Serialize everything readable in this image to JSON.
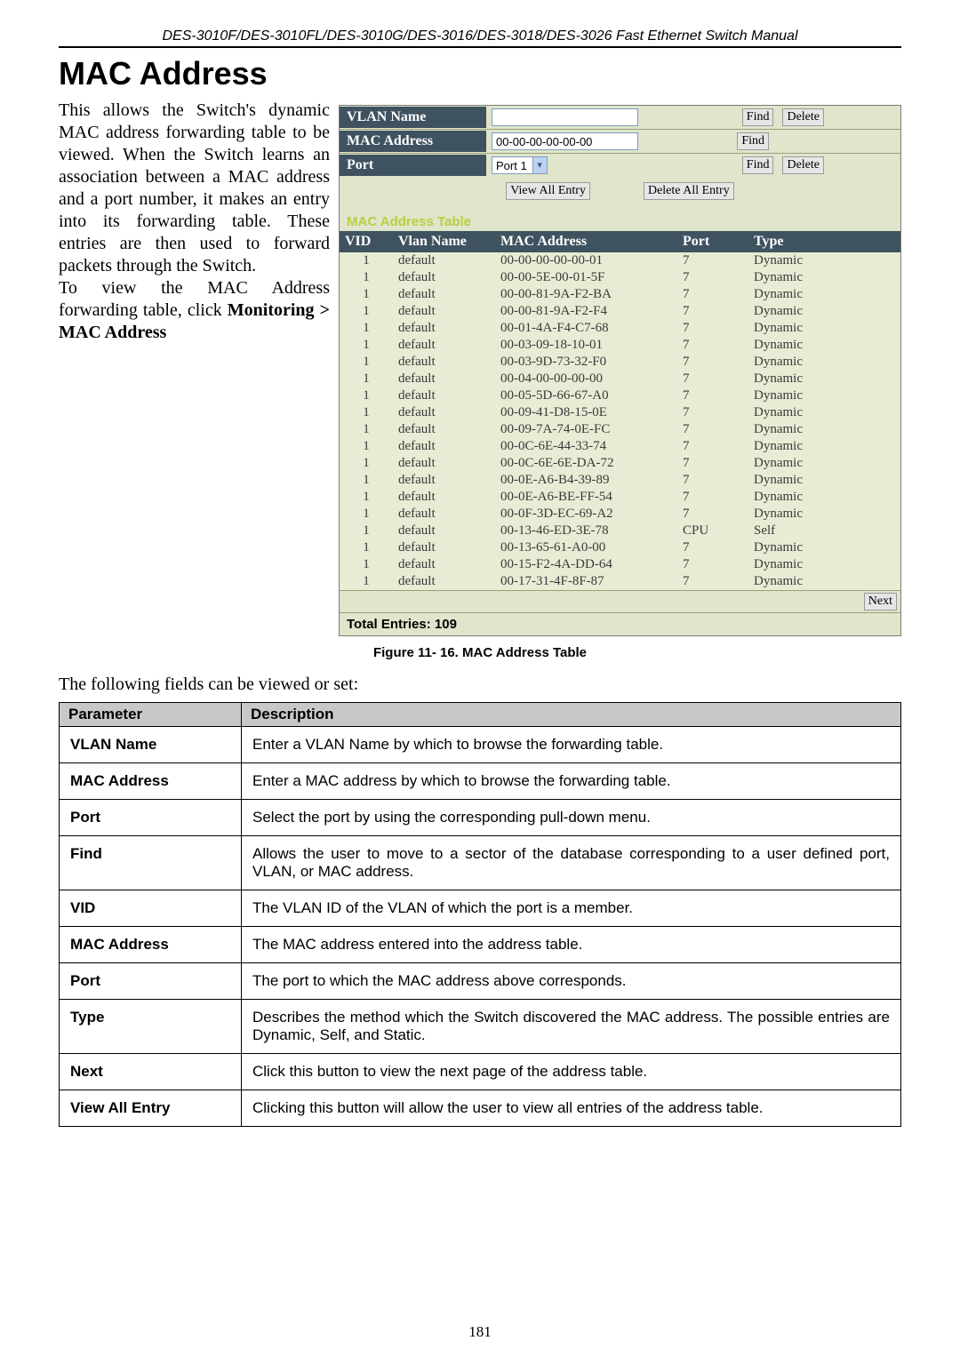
{
  "header": "DES-3010F/DES-3010FL/DES-3010G/DES-3016/DES-3018/DES-3026 Fast Ethernet Switch Manual",
  "title": "MAC Address",
  "body_p1": "This allows the Switch's dynamic MAC address forwarding table to be viewed. When the Switch learns an association between a MAC address and a port number, it makes an entry into its forwarding table. These entries are then used to forward packets through the Switch.",
  "body_p2a": "To view the MAC Address forwarding table, click ",
  "body_p2b": "Monitoring > MAC Address",
  "filters": {
    "vlan_label": "VLAN Name",
    "mac_label": "MAC Address",
    "mac_value": "00-00-00-00-00-00",
    "port_label": "Port",
    "port_value": "Port 1",
    "find": "Find",
    "delete": "Delete",
    "view_all": "View All Entry",
    "delete_all": "Delete All Entry"
  },
  "table_title": "MAC Address Table",
  "columns": {
    "vid": "VID",
    "vlan": "Vlan Name",
    "mac": "MAC Address",
    "port": "Port",
    "type": "Type"
  },
  "rows": [
    {
      "vid": "1",
      "vlan": "default",
      "mac": "00-00-00-00-00-01",
      "port": "7",
      "type": "Dynamic"
    },
    {
      "vid": "1",
      "vlan": "default",
      "mac": "00-00-5E-00-01-5F",
      "port": "7",
      "type": "Dynamic"
    },
    {
      "vid": "1",
      "vlan": "default",
      "mac": "00-00-81-9A-F2-BA",
      "port": "7",
      "type": "Dynamic"
    },
    {
      "vid": "1",
      "vlan": "default",
      "mac": "00-00-81-9A-F2-F4",
      "port": "7",
      "type": "Dynamic"
    },
    {
      "vid": "1",
      "vlan": "default",
      "mac": "00-01-4A-F4-C7-68",
      "port": "7",
      "type": "Dynamic"
    },
    {
      "vid": "1",
      "vlan": "default",
      "mac": "00-03-09-18-10-01",
      "port": "7",
      "type": "Dynamic"
    },
    {
      "vid": "1",
      "vlan": "default",
      "mac": "00-03-9D-73-32-F0",
      "port": "7",
      "type": "Dynamic"
    },
    {
      "vid": "1",
      "vlan": "default",
      "mac": "00-04-00-00-00-00",
      "port": "7",
      "type": "Dynamic"
    },
    {
      "vid": "1",
      "vlan": "default",
      "mac": "00-05-5D-66-67-A0",
      "port": "7",
      "type": "Dynamic"
    },
    {
      "vid": "1",
      "vlan": "default",
      "mac": "00-09-41-D8-15-0E",
      "port": "7",
      "type": "Dynamic"
    },
    {
      "vid": "1",
      "vlan": "default",
      "mac": "00-09-7A-74-0E-FC",
      "port": "7",
      "type": "Dynamic"
    },
    {
      "vid": "1",
      "vlan": "default",
      "mac": "00-0C-6E-44-33-74",
      "port": "7",
      "type": "Dynamic"
    },
    {
      "vid": "1",
      "vlan": "default",
      "mac": "00-0C-6E-6E-DA-72",
      "port": "7",
      "type": "Dynamic"
    },
    {
      "vid": "1",
      "vlan": "default",
      "mac": "00-0E-A6-B4-39-89",
      "port": "7",
      "type": "Dynamic"
    },
    {
      "vid": "1",
      "vlan": "default",
      "mac": "00-0E-A6-BE-FF-54",
      "port": "7",
      "type": "Dynamic"
    },
    {
      "vid": "1",
      "vlan": "default",
      "mac": "00-0F-3D-EC-69-A2",
      "port": "7",
      "type": "Dynamic"
    },
    {
      "vid": "1",
      "vlan": "default",
      "mac": "00-13-46-ED-3E-78",
      "port": "CPU",
      "type": "Self"
    },
    {
      "vid": "1",
      "vlan": "default",
      "mac": "00-13-65-61-A0-00",
      "port": "7",
      "type": "Dynamic"
    },
    {
      "vid": "1",
      "vlan": "default",
      "mac": "00-15-F2-4A-DD-64",
      "port": "7",
      "type": "Dynamic"
    },
    {
      "vid": "1",
      "vlan": "default",
      "mac": "00-17-31-4F-8F-87",
      "port": "7",
      "type": "Dynamic"
    }
  ],
  "next_btn": "Next",
  "total_entries": "Total Entries: 109",
  "figure_caption": "Figure 11- 16. MAC Address Table",
  "lead": "The following fields can be viewed or set:",
  "param_headers": {
    "p": "Parameter",
    "d": "Description"
  },
  "params": [
    {
      "p": "VLAN Name",
      "d": "Enter a VLAN Name by which to browse the forwarding table."
    },
    {
      "p": "MAC Address",
      "d": "Enter a MAC address by which to browse the forwarding table."
    },
    {
      "p": "Port",
      "d": "Select the port by using the corresponding pull-down menu."
    },
    {
      "p": "Find",
      "d": "Allows the user to move to a sector of the database corresponding to a user defined port, VLAN, or MAC address."
    },
    {
      "p": "VID",
      "d": "The VLAN ID of the VLAN of which the port is a member."
    },
    {
      "p": "MAC Address",
      "d": "The MAC address entered into the address table."
    },
    {
      "p": "Port",
      "d": "The port to which the MAC address above corresponds."
    },
    {
      "p": "Type",
      "d": "Describes the method which the Switch discovered the MAC address. The possible entries are Dynamic, Self, and Static."
    },
    {
      "p": "Next",
      "d": "Click this button to view the next page of the address table."
    },
    {
      "p": "View All Entry",
      "d": "Clicking this button will allow the user to view all entries of the address table."
    }
  ],
  "page_number": "181",
  "styling": {
    "page_bg": "#ffffff",
    "panel_bg": "#e0e5cb",
    "panel_header_bg": "#3f525f",
    "panel_header_text": "#ffffff",
    "accent_text": "#b8d040",
    "param_header_bg": "#c8c8c8",
    "border_color": "#000000",
    "input_border": "#7f9db9",
    "row_bg": "#e7ecd4"
  }
}
